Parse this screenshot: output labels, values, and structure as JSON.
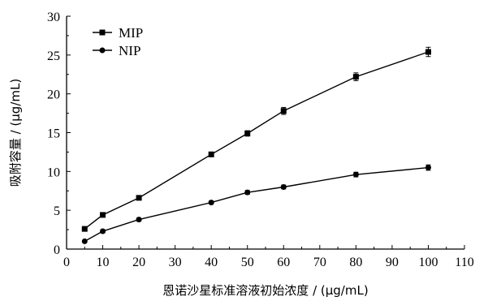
{
  "chart_data": {
    "type": "line",
    "title": "",
    "xlabel": "恩诺沙星标准溶液初始浓度 / (μg/mL)",
    "ylabel": "吸附容量 / (μg/mL)",
    "xlim": [
      0,
      110
    ],
    "ylim": [
      0,
      30
    ],
    "xticks": [
      0,
      10,
      20,
      30,
      40,
      50,
      60,
      70,
      80,
      90,
      100,
      110
    ],
    "yticks": [
      0,
      5,
      10,
      15,
      20,
      25,
      30
    ],
    "grid": false,
    "legend_position": "top-left",
    "series": [
      {
        "name": "MIP",
        "marker": "square",
        "x": [
          5,
          10,
          20,
          40,
          50,
          60,
          80,
          100
        ],
        "y": [
          2.6,
          4.4,
          6.6,
          12.2,
          14.9,
          17.8,
          22.2,
          25.4
        ],
        "error": [
          0.2,
          0.2,
          0.25,
          0.3,
          0.35,
          0.45,
          0.5,
          0.6
        ]
      },
      {
        "name": "NIP",
        "marker": "circle",
        "x": [
          5,
          10,
          20,
          40,
          50,
          60,
          80,
          100
        ],
        "y": [
          1.0,
          2.3,
          3.8,
          6.0,
          7.3,
          8.0,
          9.6,
          10.5
        ],
        "error": [
          0.15,
          0.2,
          0.2,
          0.2,
          0.25,
          0.25,
          0.3,
          0.35
        ]
      }
    ]
  }
}
